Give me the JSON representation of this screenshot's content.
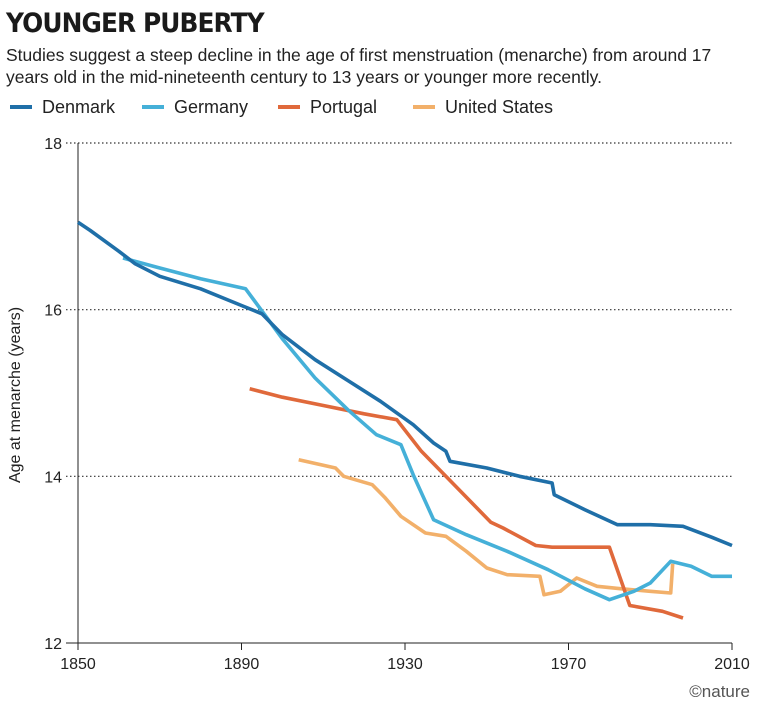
{
  "title": "YOUNGER PUBERTY",
  "subtitle": "Studies suggest a steep decline in the age of first menstruation (menarche) from around 17 years old in the mid-nineteenth century to 13 years or younger more recently.",
  "credit": "©nature",
  "chart_data": {
    "type": "line",
    "title": "YOUNGER PUBERTY",
    "xlabel": "",
    "ylabel": "Age at menarche (years)",
    "xlim": [
      1850,
      2010
    ],
    "ylim": [
      12,
      18
    ],
    "x_ticks": [
      1850,
      1890,
      1930,
      1970,
      2010
    ],
    "y_ticks": [
      12,
      14,
      16,
      18
    ],
    "y_gridlines": [
      14,
      16,
      18
    ],
    "grid": "horizontal dotted",
    "legend_position": "top",
    "series": [
      {
        "name": "Denmark",
        "color": "#1f6fa8",
        "points": [
          [
            1850,
            17.05
          ],
          [
            1853,
            16.95
          ],
          [
            1860,
            16.7
          ],
          [
            1864,
            16.55
          ],
          [
            1870,
            16.4
          ],
          [
            1880,
            16.25
          ],
          [
            1890,
            16.05
          ],
          [
            1895,
            15.95
          ],
          [
            1900,
            15.7
          ],
          [
            1908,
            15.4
          ],
          [
            1916,
            15.15
          ],
          [
            1924,
            14.9
          ],
          [
            1932,
            14.62
          ],
          [
            1937,
            14.4
          ],
          [
            1940,
            14.3
          ],
          [
            1941,
            14.18
          ],
          [
            1950,
            14.1
          ],
          [
            1958,
            14.0
          ],
          [
            1966,
            13.92
          ],
          [
            1966.5,
            13.78
          ],
          [
            1974,
            13.6
          ],
          [
            1982,
            13.42
          ],
          [
            1990,
            13.42
          ],
          [
            1998,
            13.4
          ],
          [
            2005,
            13.27
          ],
          [
            2010,
            13.17
          ]
        ]
      },
      {
        "name": "Germany",
        "color": "#45b0d8",
        "points": [
          [
            1861,
            16.62
          ],
          [
            1870,
            16.5
          ],
          [
            1880,
            16.37
          ],
          [
            1891,
            16.25
          ],
          [
            1900,
            15.65
          ],
          [
            1908,
            15.18
          ],
          [
            1916,
            14.8
          ],
          [
            1923,
            14.5
          ],
          [
            1929,
            14.38
          ],
          [
            1932,
            14.02
          ],
          [
            1937,
            13.48
          ],
          [
            1945,
            13.3
          ],
          [
            1955,
            13.1
          ],
          [
            1965,
            12.88
          ],
          [
            1974,
            12.65
          ],
          [
            1980,
            12.52
          ],
          [
            1986,
            12.62
          ],
          [
            1990,
            12.72
          ],
          [
            1995,
            12.98
          ],
          [
            2000,
            12.92
          ],
          [
            2005,
            12.8
          ],
          [
            2010,
            12.8
          ]
        ]
      },
      {
        "name": "Portugal",
        "color": "#e0693b",
        "points": [
          [
            1892,
            15.05
          ],
          [
            1900,
            14.95
          ],
          [
            1910,
            14.85
          ],
          [
            1920,
            14.75
          ],
          [
            1928,
            14.68
          ],
          [
            1934,
            14.3
          ],
          [
            1943,
            13.85
          ],
          [
            1951,
            13.45
          ],
          [
            1954,
            13.38
          ],
          [
            1962,
            13.17
          ],
          [
            1966,
            13.15
          ],
          [
            1972,
            13.15
          ],
          [
            1980,
            13.15
          ],
          [
            1985,
            12.45
          ],
          [
            1993,
            12.38
          ],
          [
            1998,
            12.3
          ]
        ]
      },
      {
        "name": "United States",
        "color": "#f2b06a",
        "points": [
          [
            1904,
            14.2
          ],
          [
            1913,
            14.1
          ],
          [
            1915,
            14.0
          ],
          [
            1922,
            13.9
          ],
          [
            1925,
            13.75
          ],
          [
            1929,
            13.52
          ],
          [
            1935,
            13.32
          ],
          [
            1940,
            13.28
          ],
          [
            1945,
            13.1
          ],
          [
            1950,
            12.9
          ],
          [
            1955,
            12.82
          ],
          [
            1963,
            12.8
          ],
          [
            1964,
            12.58
          ],
          [
            1968,
            12.62
          ],
          [
            1972,
            12.78
          ],
          [
            1977,
            12.68
          ],
          [
            1983,
            12.65
          ],
          [
            1990,
            12.62
          ],
          [
            1995,
            12.6
          ],
          [
            1995.5,
            12.95
          ]
        ]
      }
    ]
  }
}
